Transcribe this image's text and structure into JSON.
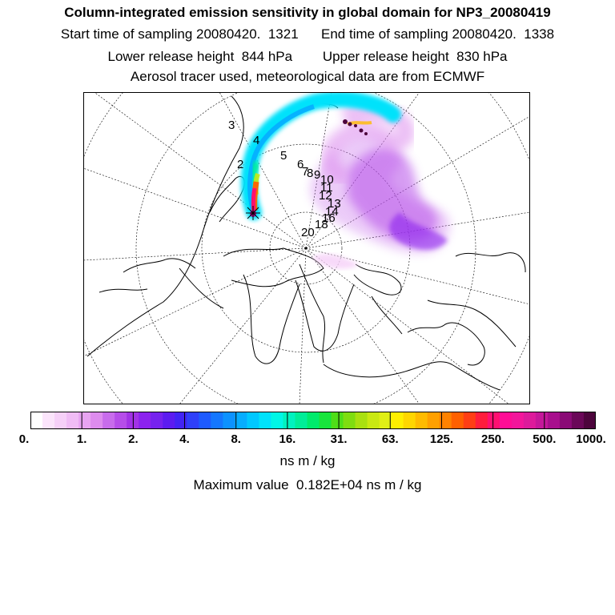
{
  "header": {
    "title": "Column-integrated emission sensitivity in global domain for NP3_20080419",
    "start_label": "Start time of sampling 20080420.  1321",
    "end_label": "End time of sampling 20080420.  1338",
    "lower_label": "Lower release height  844 hPa",
    "upper_label": "Upper release height  830 hPa",
    "tracer_note": "Aerosol tracer used, meteorological data are from ECMWF"
  },
  "map": {
    "projection": "polar-stereographic",
    "day_labels": [
      "3",
      "2",
      "4",
      "5",
      "6",
      "7",
      "8",
      "9",
      "10",
      "11",
      "12",
      "13",
      "14",
      "16",
      "18",
      "20"
    ]
  },
  "colorbar": {
    "colors": [
      "#ffffff",
      "#fbe4fb",
      "#f6d0f8",
      "#f0bcf5",
      "#e8a4f2",
      "#dd8cee",
      "#c86cec",
      "#b64de9",
      "#a232e6",
      "#8c22ee",
      "#7622ee",
      "#5c1cf0",
      "#4224f4",
      "#2f40fa",
      "#1e5bff",
      "#1577ff",
      "#0d92ff",
      "#06adff",
      "#00c8ff",
      "#00e2fb",
      "#00f6e6",
      "#00f2bf",
      "#00ed98",
      "#00ea6c",
      "#18e43c",
      "#4fde18",
      "#7fdd10",
      "#a9e010",
      "#c9e812",
      "#e0ef16",
      "#ffef00",
      "#ffd600",
      "#ffbb00",
      "#ffa000",
      "#ff8200",
      "#ff6000",
      "#ff3e14",
      "#ff1d3c",
      "#ff1070",
      "#ff0d96",
      "#f3169b",
      "#dd1b9b",
      "#c5189a",
      "#a80f8d",
      "#8a0b76",
      "#6a0858",
      "#4d053c"
    ],
    "tick_labels": [
      "0.",
      "1.",
      "2.",
      "4.",
      "8.",
      "16.",
      "31.",
      "63.",
      "125.",
      "250.",
      "500.",
      "1000."
    ],
    "units": "ns m / kg"
  },
  "footer": {
    "max_label": "Maximum value  0.182E+04 ns m / kg"
  }
}
